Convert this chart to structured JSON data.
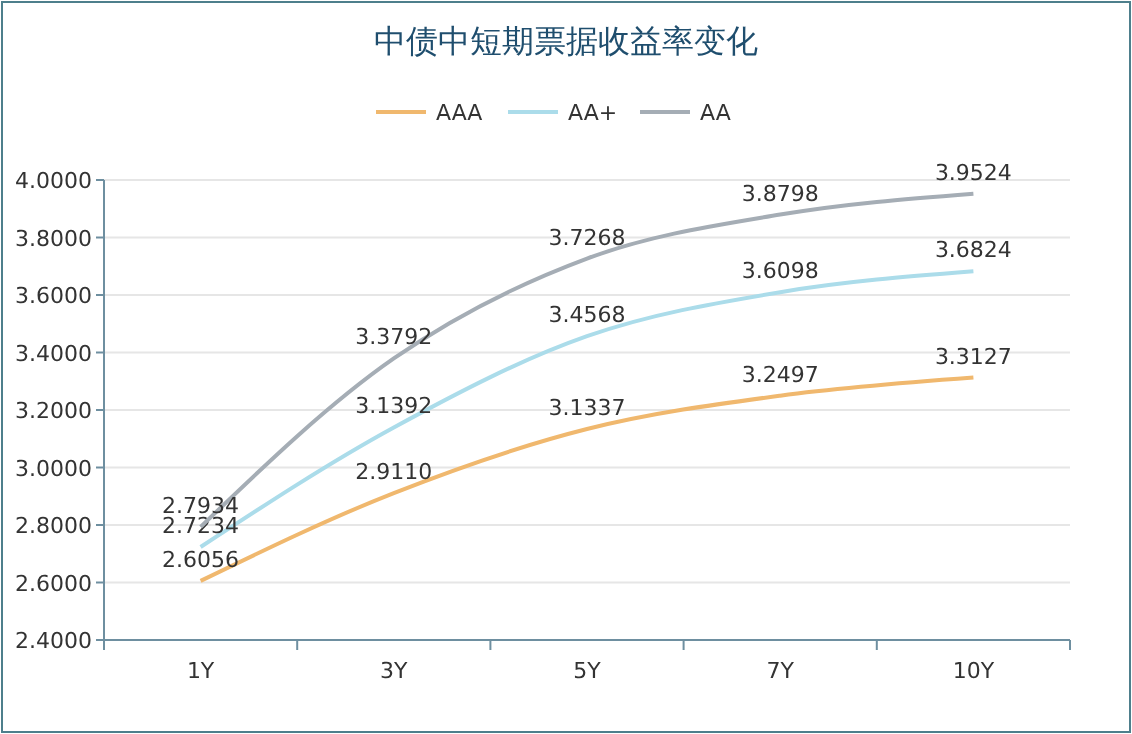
{
  "chart_data": {
    "type": "line",
    "title": "中债中短期票据收益率变化",
    "categories": [
      "1Y",
      "3Y",
      "5Y",
      "7Y",
      "10Y"
    ],
    "series": [
      {
        "name": "AAA",
        "color": "#f0b86e",
        "values": [
          2.6056,
          2.911,
          3.1337,
          3.2497,
          3.3127
        ],
        "value_labels": [
          "2.6056",
          "2.9110",
          "3.1337",
          "3.2497",
          "3.3127"
        ]
      },
      {
        "name": "AA+",
        "color": "#abdcea",
        "values": [
          2.7234,
          3.1392,
          3.4568,
          3.6098,
          3.6824
        ],
        "value_labels": [
          "2.7234",
          "3.1392",
          "3.4568",
          "3.6098",
          "3.6824"
        ]
      },
      {
        "name": "AA",
        "color": "#a5adb5",
        "values": [
          2.7934,
          3.3792,
          3.7268,
          3.8798,
          3.9524
        ],
        "value_labels": [
          "2.7934",
          "3.3792",
          "3.7268",
          "3.8798",
          "3.9524"
        ]
      }
    ],
    "ylim": [
      2.4,
      4.0
    ],
    "yticks": [
      {
        "value": 2.4,
        "label": "2.4000"
      },
      {
        "value": 2.6,
        "label": "2.6000"
      },
      {
        "value": 2.8,
        "label": "2.8000"
      },
      {
        "value": 3.0,
        "label": "3.0000"
      },
      {
        "value": 3.2,
        "label": "3.2000"
      },
      {
        "value": 3.4,
        "label": "3.4000"
      },
      {
        "value": 3.6,
        "label": "3.6000"
      },
      {
        "value": 3.8,
        "label": "3.8000"
      },
      {
        "value": 4.0,
        "label": "4.0000"
      }
    ],
    "grid": "y",
    "legend": "top",
    "marker": "none"
  }
}
